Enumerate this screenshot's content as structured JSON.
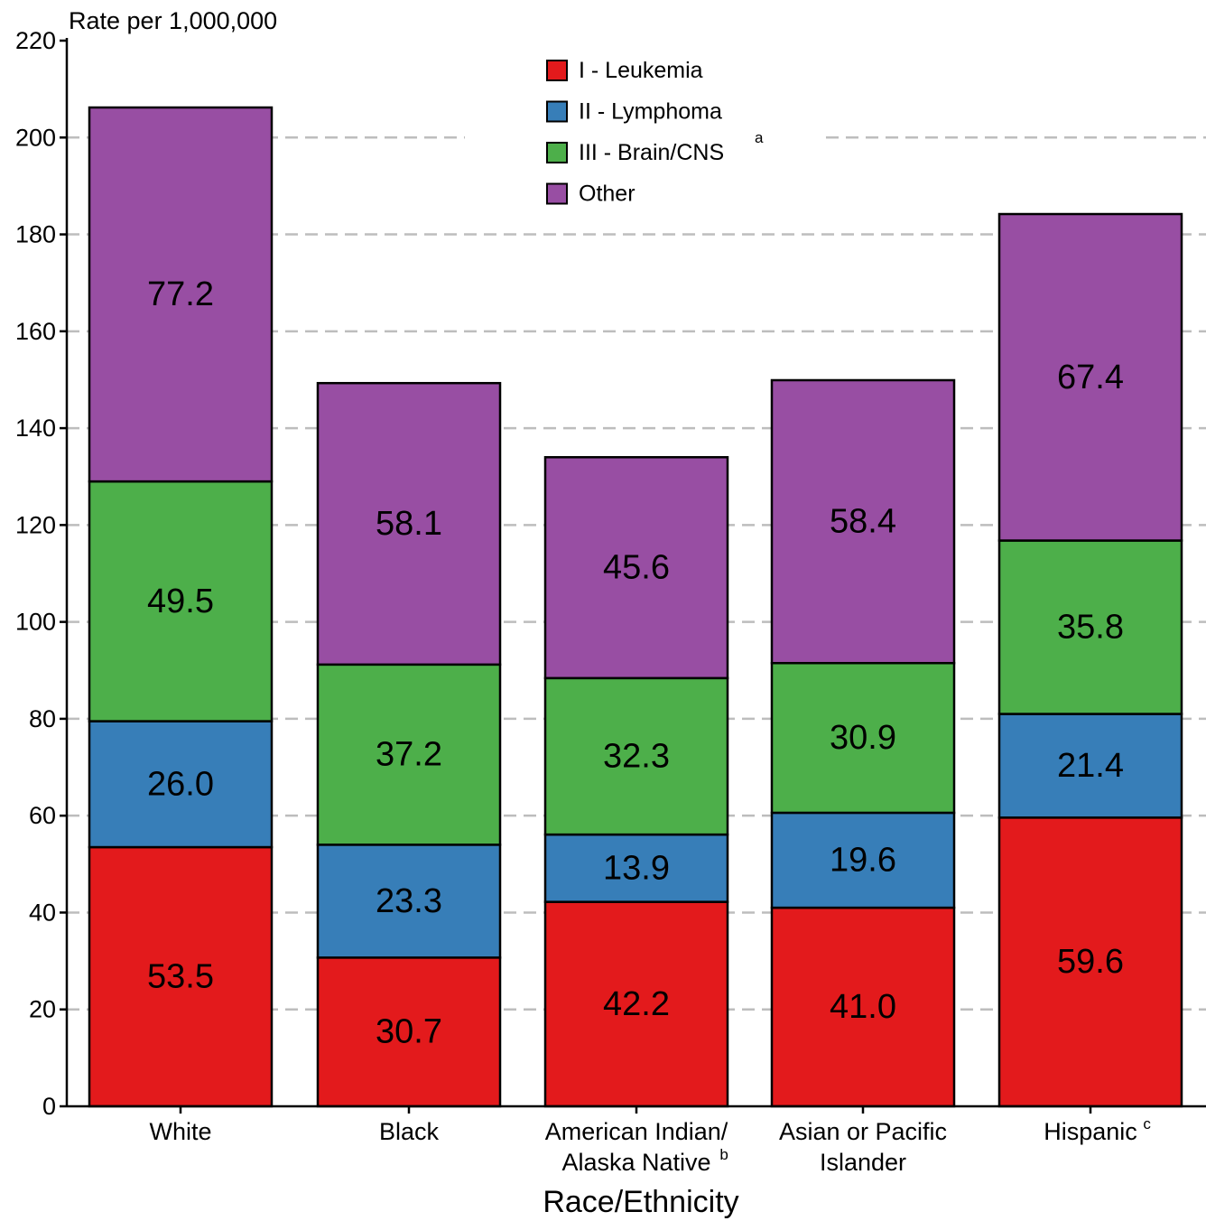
{
  "chart_data": {
    "type": "bar",
    "stacked": true,
    "title": "",
    "ylabel": "Rate per 1,000,000",
    "xlabel": "Race/Ethnicity",
    "ylim": [
      0,
      220
    ],
    "yticks": [
      0,
      20,
      40,
      60,
      80,
      100,
      120,
      140,
      160,
      180,
      200,
      220
    ],
    "grid": "horizontal dashed",
    "legend_position": "top-center",
    "categories": [
      {
        "label_lines": [
          "White"
        ],
        "sup": ""
      },
      {
        "label_lines": [
          "Black"
        ],
        "sup": ""
      },
      {
        "label_lines": [
          "American Indian/",
          "Alaska Native"
        ],
        "sup": "b"
      },
      {
        "label_lines": [
          "Asian or Pacific",
          "Islander"
        ],
        "sup": ""
      },
      {
        "label_lines": [
          "Hispanic"
        ],
        "sup": "c"
      }
    ],
    "series": [
      {
        "name": "I - Leukemia",
        "sup": "",
        "color": "#e31a1c",
        "values": [
          53.5,
          30.7,
          42.2,
          41.0,
          59.6
        ]
      },
      {
        "name": "II - Lymphoma",
        "sup": "",
        "color": "#377eb8",
        "values": [
          26.0,
          23.3,
          13.9,
          19.6,
          21.4
        ]
      },
      {
        "name": "III - Brain/CNS",
        "sup": "a",
        "color": "#4daf4a",
        "values": [
          49.5,
          37.2,
          32.3,
          30.9,
          35.8
        ]
      },
      {
        "name": "Other",
        "sup": "",
        "color": "#984ea3",
        "values": [
          77.2,
          58.1,
          45.6,
          58.4,
          67.4
        ]
      }
    ]
  }
}
